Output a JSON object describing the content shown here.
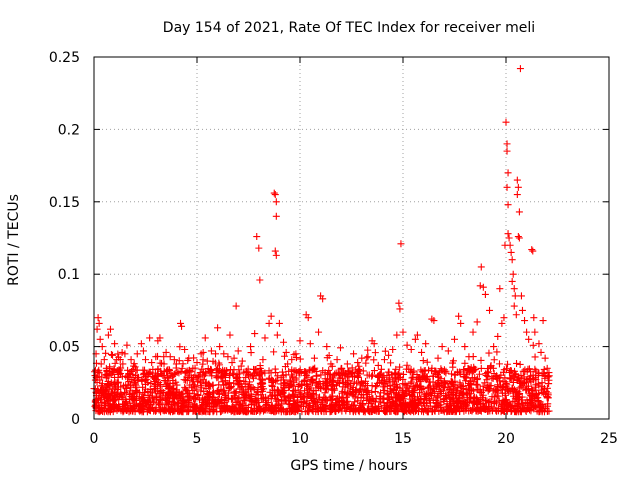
{
  "chart_data": {
    "type": "scatter",
    "title": "Day 154 of 2021, Rate Of TEC Index for receiver meli",
    "xlabel": "GPS time / hours",
    "ylabel": "ROTI / TECUs",
    "xlim": [
      0,
      25
    ],
    "ylim": [
      0,
      0.25
    ],
    "x_ticks": [
      0,
      5,
      10,
      15,
      20,
      25
    ],
    "x_tick_labels": [
      "0",
      "5",
      "10",
      "15",
      "20",
      "25"
    ],
    "y_ticks": [
      0,
      0.05,
      0.1,
      0.15,
      0.2,
      0.25
    ],
    "y_tick_labels": [
      "0",
      "0.05",
      "0.1",
      "0.15",
      "0.2",
      "0.25"
    ],
    "grid": true,
    "marker": "plus",
    "color": "#ff0000",
    "series": [
      {
        "name": "ROTI",
        "points": [
          [
            0.0,
            0.021
          ],
          [
            0.05,
            0.03
          ],
          [
            0.1,
            0.045
          ],
          [
            0.15,
            0.062
          ],
          [
            0.2,
            0.07
          ],
          [
            0.25,
            0.066
          ],
          [
            0.3,
            0.055
          ],
          [
            0.35,
            0.038
          ],
          [
            0.4,
            0.05
          ],
          [
            0.5,
            0.041
          ],
          [
            0.6,
            0.035
          ],
          [
            0.7,
            0.058
          ],
          [
            0.8,
            0.062
          ],
          [
            0.9,
            0.044
          ],
          [
            1.0,
            0.052
          ],
          [
            1.1,
            0.041
          ],
          [
            1.2,
            0.033
          ],
          [
            1.4,
            0.038
          ],
          [
            1.5,
            0.045
          ],
          [
            1.6,
            0.051
          ],
          [
            1.8,
            0.041
          ],
          [
            2.0,
            0.036
          ],
          [
            2.1,
            0.045
          ],
          [
            2.3,
            0.052
          ],
          [
            2.4,
            0.047
          ],
          [
            2.5,
            0.041
          ],
          [
            2.7,
            0.056
          ],
          [
            2.8,
            0.039
          ],
          [
            3.0,
            0.043
          ],
          [
            3.1,
            0.054
          ],
          [
            3.2,
            0.056
          ],
          [
            3.4,
            0.038
          ],
          [
            3.5,
            0.046
          ],
          [
            3.7,
            0.043
          ],
          [
            3.9,
            0.041
          ],
          [
            4.0,
            0.038
          ],
          [
            4.2,
            0.066
          ],
          [
            4.25,
            0.064
          ],
          [
            4.4,
            0.048
          ],
          [
            4.6,
            0.042
          ],
          [
            4.8,
            0.035
          ],
          [
            5.0,
            0.039
          ],
          [
            5.2,
            0.045
          ],
          [
            5.4,
            0.056
          ],
          [
            5.5,
            0.04
          ],
          [
            5.7,
            0.047
          ],
          [
            5.9,
            0.045
          ],
          [
            6.0,
            0.063
          ],
          [
            6.1,
            0.05
          ],
          [
            6.3,
            0.045
          ],
          [
            6.5,
            0.043
          ],
          [
            6.6,
            0.058
          ],
          [
            6.7,
            0.039
          ],
          [
            6.8,
            0.042
          ],
          [
            6.9,
            0.078
          ],
          [
            7.0,
            0.047
          ],
          [
            7.2,
            0.04
          ],
          [
            7.4,
            0.033
          ],
          [
            7.6,
            0.05
          ],
          [
            7.8,
            0.059
          ],
          [
            7.9,
            0.126
          ],
          [
            8.0,
            0.118
          ],
          [
            8.05,
            0.096
          ],
          [
            8.2,
            0.041
          ],
          [
            8.3,
            0.056
          ],
          [
            8.5,
            0.066
          ],
          [
            8.6,
            0.071
          ],
          [
            8.75,
            0.156
          ],
          [
            8.8,
            0.155
          ],
          [
            8.85,
            0.15
          ],
          [
            8.85,
            0.14
          ],
          [
            8.8,
            0.116
          ],
          [
            8.85,
            0.113
          ],
          [
            8.9,
            0.058
          ],
          [
            9.0,
            0.066
          ],
          [
            9.2,
            0.053
          ],
          [
            9.4,
            0.038
          ],
          [
            9.6,
            0.041
          ],
          [
            9.8,
            0.045
          ],
          [
            10.0,
            0.054
          ],
          [
            10.3,
            0.072
          ],
          [
            10.4,
            0.07
          ],
          [
            10.5,
            0.052
          ],
          [
            10.7,
            0.042
          ],
          [
            10.9,
            0.06
          ],
          [
            11.0,
            0.085
          ],
          [
            11.1,
            0.083
          ],
          [
            11.3,
            0.05
          ],
          [
            11.5,
            0.038
          ],
          [
            11.8,
            0.041
          ],
          [
            12.0,
            0.035
          ],
          [
            12.3,
            0.038
          ],
          [
            12.6,
            0.045
          ],
          [
            12.8,
            0.039
          ],
          [
            13.0,
            0.042
          ],
          [
            13.3,
            0.043
          ],
          [
            13.5,
            0.054
          ],
          [
            13.6,
            0.052
          ],
          [
            13.8,
            0.037
          ],
          [
            14.1,
            0.041
          ],
          [
            14.3,
            0.044
          ],
          [
            14.5,
            0.048
          ],
          [
            14.7,
            0.058
          ],
          [
            14.8,
            0.08
          ],
          [
            14.85,
            0.076
          ],
          [
            14.9,
            0.121
          ],
          [
            15.0,
            0.06
          ],
          [
            15.2,
            0.051
          ],
          [
            15.4,
            0.048
          ],
          [
            15.6,
            0.055
          ],
          [
            15.7,
            0.058
          ],
          [
            15.9,
            0.046
          ],
          [
            16.1,
            0.052
          ],
          [
            16.4,
            0.069
          ],
          [
            16.5,
            0.068
          ],
          [
            16.7,
            0.042
          ],
          [
            16.9,
            0.05
          ],
          [
            17.2,
            0.047
          ],
          [
            17.5,
            0.055
          ],
          [
            17.7,
            0.071
          ],
          [
            17.8,
            0.066
          ],
          [
            18.0,
            0.05
          ],
          [
            18.2,
            0.043
          ],
          [
            18.4,
            0.06
          ],
          [
            18.6,
            0.067
          ],
          [
            18.75,
            0.092
          ],
          [
            18.8,
            0.105
          ],
          [
            18.9,
            0.091
          ],
          [
            19.0,
            0.086
          ],
          [
            19.2,
            0.075
          ],
          [
            19.4,
            0.05
          ],
          [
            19.6,
            0.057
          ],
          [
            19.7,
            0.09
          ],
          [
            19.8,
            0.066
          ],
          [
            19.9,
            0.07
          ],
          [
            19.95,
            0.12
          ],
          [
            20.0,
            0.205
          ],
          [
            20.05,
            0.19
          ],
          [
            20.05,
            0.185
          ],
          [
            20.1,
            0.17
          ],
          [
            20.05,
            0.16
          ],
          [
            20.1,
            0.148
          ],
          [
            20.1,
            0.128
          ],
          [
            20.15,
            0.125
          ],
          [
            20.2,
            0.12
          ],
          [
            20.25,
            0.115
          ],
          [
            20.3,
            0.11
          ],
          [
            20.35,
            0.1
          ],
          [
            20.3,
            0.095
          ],
          [
            20.4,
            0.09
          ],
          [
            20.45,
            0.085
          ],
          [
            20.4,
            0.078
          ],
          [
            20.5,
            0.072
          ],
          [
            20.55,
            0.165
          ],
          [
            20.6,
            0.16
          ],
          [
            20.55,
            0.155
          ],
          [
            20.65,
            0.143
          ],
          [
            20.6,
            0.126
          ],
          [
            20.65,
            0.125
          ],
          [
            20.7,
            0.242
          ],
          [
            20.75,
            0.085
          ],
          [
            20.8,
            0.075
          ],
          [
            20.9,
            0.068
          ],
          [
            21.0,
            0.06
          ],
          [
            21.1,
            0.055
          ],
          [
            21.25,
            0.117
          ],
          [
            21.3,
            0.116
          ],
          [
            21.35,
            0.07
          ],
          [
            21.4,
            0.06
          ],
          [
            21.6,
            0.052
          ],
          [
            21.7,
            0.046
          ],
          [
            21.8,
            0.068
          ],
          [
            21.9,
            0.042
          ],
          [
            22.0,
            0.035
          ]
        ],
        "dense_band": {
          "x_range": [
            0,
            22.1
          ],
          "y_base_min": 0.005,
          "y_base_max": 0.035,
          "samples": 2600
        }
      }
    ]
  }
}
